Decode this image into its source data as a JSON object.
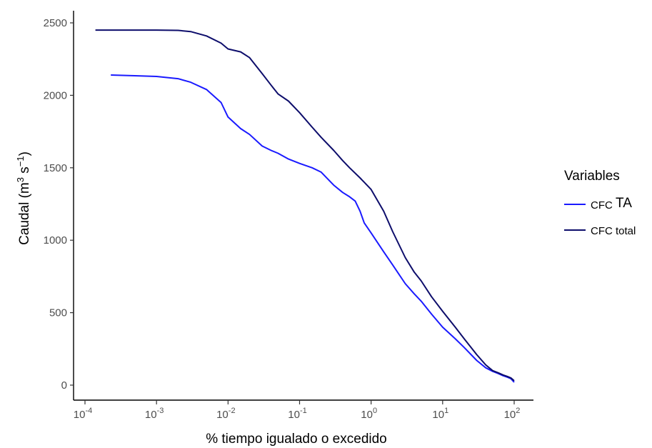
{
  "chart_data": {
    "type": "line",
    "xlabel": "% tiempo igualado o excedido",
    "ylabel": "Caudal (m3 s−1)",
    "ylabel_parts": {
      "base": "Caudal (m",
      "sup1": "3",
      "mid": " s",
      "sup2": "−1",
      "end": ")"
    },
    "x_scale": "log10",
    "xlim": [
      0.0001,
      100
    ],
    "ylim": [
      0,
      2500
    ],
    "x_ticks": [
      {
        "value": 0.0001,
        "base": "10",
        "exp": "-4"
      },
      {
        "value": 0.001,
        "base": "10",
        "exp": "-3"
      },
      {
        "value": 0.01,
        "base": "10",
        "exp": "-2"
      },
      {
        "value": 0.1,
        "base": "10",
        "exp": "-1"
      },
      {
        "value": 1,
        "base": "10",
        "exp": "0"
      },
      {
        "value": 10,
        "base": "10",
        "exp": "1"
      },
      {
        "value": 100,
        "base": "10",
        "exp": "2"
      }
    ],
    "y_ticks": [
      0,
      500,
      1000,
      1500,
      2000,
      2500
    ],
    "grid": false,
    "legend": {
      "title": "Variables",
      "position": "right",
      "entries": [
        {
          "series": 0,
          "label_parts": [
            "CFC",
            "TA"
          ]
        },
        {
          "series": 1,
          "label_parts": [
            "CFC total"
          ]
        }
      ]
    },
    "series": [
      {
        "name": "CFC TA",
        "color": "#1a1aff",
        "x": [
          0.00023,
          0.0005,
          0.001,
          0.002,
          0.003,
          0.005,
          0.008,
          0.01,
          0.015,
          0.02,
          0.03,
          0.04,
          0.05,
          0.07,
          0.1,
          0.15,
          0.2,
          0.3,
          0.4,
          0.5,
          0.6,
          0.7,
          0.8,
          1,
          1.5,
          2,
          3,
          4,
          5,
          7,
          10,
          15,
          20,
          30,
          40,
          50,
          60,
          70,
          80,
          90,
          100
        ],
        "y": [
          2140,
          2135,
          2130,
          2115,
          2090,
          2040,
          1950,
          1850,
          1770,
          1730,
          1650,
          1620,
          1600,
          1560,
          1530,
          1500,
          1470,
          1380,
          1330,
          1300,
          1270,
          1200,
          1120,
          1050,
          920,
          830,
          700,
          630,
          580,
          490,
          400,
          320,
          260,
          170,
          120,
          95,
          80,
          65,
          55,
          45,
          20
        ]
      },
      {
        "name": "CFC total",
        "color": "#0d0d6b",
        "x": [
          0.00014,
          0.0005,
          0.001,
          0.002,
          0.003,
          0.005,
          0.008,
          0.01,
          0.015,
          0.02,
          0.03,
          0.04,
          0.05,
          0.07,
          0.1,
          0.15,
          0.2,
          0.3,
          0.4,
          0.5,
          0.7,
          1,
          1.5,
          2,
          3,
          4,
          5,
          7,
          10,
          15,
          20,
          30,
          40,
          50,
          60,
          70,
          80,
          90,
          100
        ],
        "y": [
          2450,
          2450,
          2450,
          2448,
          2440,
          2410,
          2360,
          2320,
          2300,
          2260,
          2150,
          2070,
          2010,
          1960,
          1880,
          1780,
          1710,
          1620,
          1550,
          1500,
          1430,
          1350,
          1200,
          1060,
          880,
          780,
          720,
          610,
          510,
          400,
          320,
          210,
          140,
          100,
          85,
          70,
          60,
          50,
          30
        ]
      }
    ]
  }
}
